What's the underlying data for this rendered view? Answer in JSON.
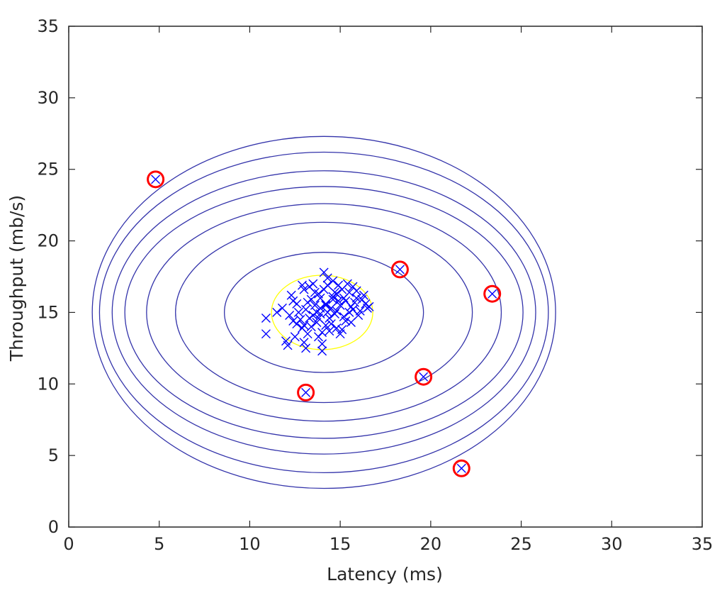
{
  "chart_data": {
    "type": "scatter",
    "title": "",
    "xlabel": "Latency (ms)",
    "ylabel": "Throughput (mb/s)",
    "xlim": [
      0,
      35
    ],
    "ylim": [
      0,
      35
    ],
    "x_ticks": [
      0,
      5,
      10,
      15,
      20,
      25,
      30,
      35
    ],
    "y_ticks": [
      0,
      5,
      10,
      15,
      20,
      25,
      30,
      35
    ],
    "grid": false,
    "box": true,
    "colors": {
      "points": "#0000ff",
      "contours": "#3333aa",
      "threshold_contour": "#ffff00",
      "anomaly_circles": "#ff0000",
      "axis": "#262626"
    },
    "center": [
      14.1,
      15.0
    ],
    "contours": [
      {
        "rx": 5.5,
        "ry": 4.2
      },
      {
        "rx": 8.2,
        "ry": 6.3
      },
      {
        "rx": 9.8,
        "ry": 7.6
      },
      {
        "rx": 11.0,
        "ry": 8.8
      },
      {
        "rx": 11.7,
        "ry": 9.9
      },
      {
        "rx": 12.4,
        "ry": 11.2
      },
      {
        "rx": 12.8,
        "ry": 12.3
      }
    ],
    "threshold_contour": {
      "cx": 14.0,
      "cy": 15.0,
      "rx": 2.8,
      "ry": 2.6
    },
    "cluster": [
      [
        13.1,
        15.2
      ],
      [
        13.5,
        14.8
      ],
      [
        14.2,
        15.6
      ],
      [
        14.8,
        15.1
      ],
      [
        15.2,
        16.0
      ],
      [
        13.8,
        16.3
      ],
      [
        14.5,
        14.2
      ],
      [
        15.6,
        15.4
      ],
      [
        12.8,
        14.5
      ],
      [
        14.0,
        13.6
      ],
      [
        15.9,
        16.5
      ],
      [
        13.3,
        16.8
      ],
      [
        14.6,
        17.2
      ],
      [
        12.4,
        15.8
      ],
      [
        15.3,
        14.4
      ],
      [
        16.2,
        15.9
      ],
      [
        13.9,
        14.9
      ],
      [
        14.3,
        16.9
      ],
      [
        12.9,
        13.9
      ],
      [
        15.0,
        13.5
      ],
      [
        14.1,
        17.8
      ],
      [
        13.0,
        16.6
      ],
      [
        16.5,
        15.3
      ],
      [
        12.6,
        14.2
      ],
      [
        15.7,
        16.8
      ],
      [
        14.9,
        15.8
      ],
      [
        13.6,
        15.5
      ],
      [
        14.4,
        14.6
      ],
      [
        15.5,
        15.0
      ],
      [
        13.2,
        13.5
      ],
      [
        14.7,
        16.4
      ],
      [
        12.3,
        16.2
      ],
      [
        16.0,
        14.8
      ],
      [
        13.4,
        15.9
      ],
      [
        14.0,
        12.8
      ],
      [
        15.1,
        16.6
      ],
      [
        12.7,
        15.0
      ],
      [
        13.7,
        14.3
      ],
      [
        14.8,
        13.9
      ],
      [
        15.8,
        15.7
      ],
      [
        11.8,
        15.3
      ],
      [
        13.9,
        16.0
      ],
      [
        14.2,
        14.1
      ],
      [
        15.4,
        17.0
      ],
      [
        13.1,
        12.5
      ],
      [
        14.5,
        15.3
      ],
      [
        16.3,
        16.2
      ],
      [
        12.5,
        13.3
      ],
      [
        15.2,
        14.7
      ],
      [
        13.5,
        17.0
      ],
      [
        14.6,
        15.9
      ],
      [
        13.8,
        13.3
      ],
      [
        15.0,
        15.5
      ],
      [
        14.3,
        15.0
      ],
      [
        12.2,
        14.8
      ],
      [
        16.1,
        15.1
      ],
      [
        13.0,
        14.1
      ],
      [
        14.9,
        16.9
      ],
      [
        13.6,
        16.4
      ],
      [
        15.6,
        14.3
      ],
      [
        14.1,
        16.6
      ],
      [
        12.9,
        16.9
      ],
      [
        15.3,
        15.8
      ],
      [
        14.4,
        13.7
      ],
      [
        13.3,
        14.6
      ],
      [
        15.9,
        16.0
      ],
      [
        14.7,
        14.9
      ],
      [
        12.6,
        15.6
      ],
      [
        13.9,
        15.3
      ],
      [
        14.0,
        12.3
      ],
      [
        16.4,
        15.6
      ],
      [
        13.2,
        15.7
      ],
      [
        14.6,
        16.1
      ],
      [
        15.1,
        13.8
      ],
      [
        12.4,
        14.4
      ],
      [
        14.2,
        15.5
      ],
      [
        15.7,
        15.2
      ],
      [
        13.7,
        15.0
      ],
      [
        14.8,
        16.3
      ],
      [
        13.4,
        14.0
      ],
      [
        12.0,
        13.0
      ],
      [
        12.1,
        12.7
      ],
      [
        10.9,
        14.6
      ],
      [
        10.9,
        13.5
      ],
      [
        13.0,
        12.9
      ],
      [
        11.5,
        15.0
      ],
      [
        16.6,
        15.4
      ],
      [
        15.5,
        16.4
      ],
      [
        14.3,
        17.4
      ],
      [
        13.8,
        14.6
      ]
    ],
    "anomalies": [
      [
        4.8,
        24.3
      ],
      [
        18.3,
        18.0
      ],
      [
        23.4,
        16.3
      ],
      [
        19.6,
        10.5
      ],
      [
        13.1,
        9.4
      ],
      [
        21.7,
        4.1
      ]
    ]
  }
}
